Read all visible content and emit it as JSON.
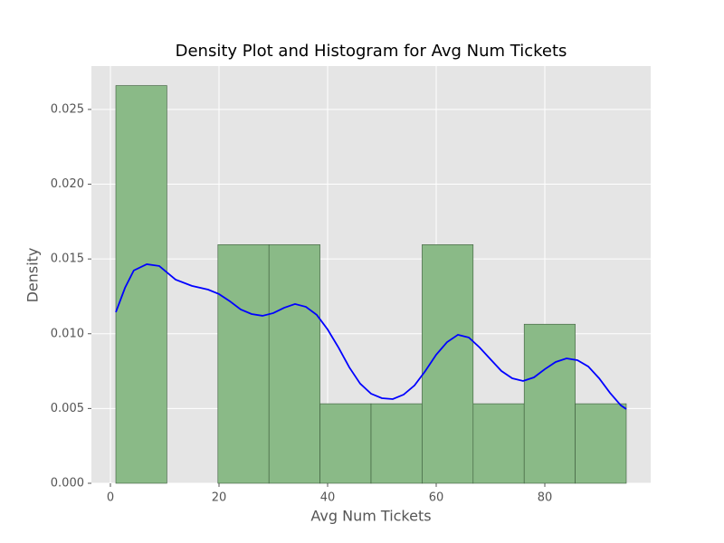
{
  "chart_data": {
    "type": "histogram",
    "title": "Density Plot and Histogram for Avg Num Tickets",
    "xlabel": "Avg Num Tickets",
    "ylabel": "Density",
    "bins": [
      1,
      10.4,
      19.8,
      29.2,
      38.6,
      48,
      57.4,
      66.8,
      76.2,
      85.6,
      95
    ],
    "values": [
      0.026596,
      0,
      0.015957,
      0.015957,
      0.005319,
      0.005319,
      0.015957,
      0.005319,
      0.010638,
      0.005319
    ],
    "color": "#8aba87",
    "edgecolor": "#3a5a3a",
    "density": {
      "color": "#0000ff",
      "x": [
        1,
        2.7,
        4.3,
        6.7,
        9,
        12,
        15,
        18,
        20,
        22,
        24,
        26,
        28,
        30,
        32,
        34,
        36,
        38,
        40,
        42,
        44,
        46,
        48,
        50,
        52,
        54,
        56,
        58,
        60,
        62,
        64,
        66,
        68,
        70,
        72,
        74,
        76,
        78,
        80,
        82,
        84,
        86,
        88,
        90,
        92,
        94,
        95
      ],
      "values": [
        0.01144,
        0.01308,
        0.01423,
        0.01465,
        0.01453,
        0.01362,
        0.0132,
        0.01295,
        0.01265,
        0.01217,
        0.01162,
        0.01132,
        0.0112,
        0.01138,
        0.01174,
        0.01199,
        0.0118,
        0.01126,
        0.01029,
        0.00908,
        0.00775,
        0.00666,
        0.00599,
        0.00569,
        0.00563,
        0.00593,
        0.00654,
        0.00751,
        0.0086,
        0.00944,
        0.00993,
        0.00975,
        0.00908,
        0.00829,
        0.00751,
        0.00702,
        0.00684,
        0.00708,
        0.00763,
        0.00811,
        0.00835,
        0.00823,
        0.00781,
        0.00702,
        0.00605,
        0.00521,
        0.00496
      ]
    },
    "xlim": [
      -3.5,
      99.5
    ],
    "ylim": [
      0,
      0.0279
    ],
    "xticks": [
      0,
      20,
      40,
      60,
      80
    ],
    "yticks": [
      {
        "value": 0,
        "label": "0.000"
      },
      0.005,
      {
        "value": 0.01,
        "label": "0.010"
      },
      0.015,
      {
        "value": 0.02,
        "label": "0.020"
      },
      0.025
    ],
    "grid": true
  }
}
